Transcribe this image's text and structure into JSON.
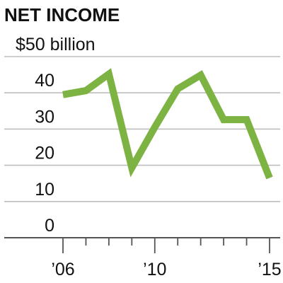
{
  "chart_data": {
    "type": "line",
    "title": "NET INCOME",
    "top_tick_label": "$50 billion",
    "y_tick_labels": [
      "0",
      "10",
      "20",
      "30",
      "40"
    ],
    "y_ticks": [
      0,
      10,
      20,
      30,
      40,
      50
    ],
    "x_tick_labels": [
      "’06",
      "’10",
      "’15"
    ],
    "x_ticks": [
      2006,
      2010,
      2015
    ],
    "ylim": [
      0,
      50
    ],
    "xlim": [
      2006,
      2015
    ],
    "grid": true,
    "line_color": "#7cb342",
    "x": [
      2006,
      2007,
      2008,
      2009,
      2010,
      2011,
      2012,
      2013,
      2014,
      2015
    ],
    "series": [
      {
        "values": [
          39.5,
          40.6,
          45.2,
          19.3,
          30.5,
          41.1,
          44.9,
          32.6,
          32.6,
          16.5
        ]
      }
    ]
  }
}
